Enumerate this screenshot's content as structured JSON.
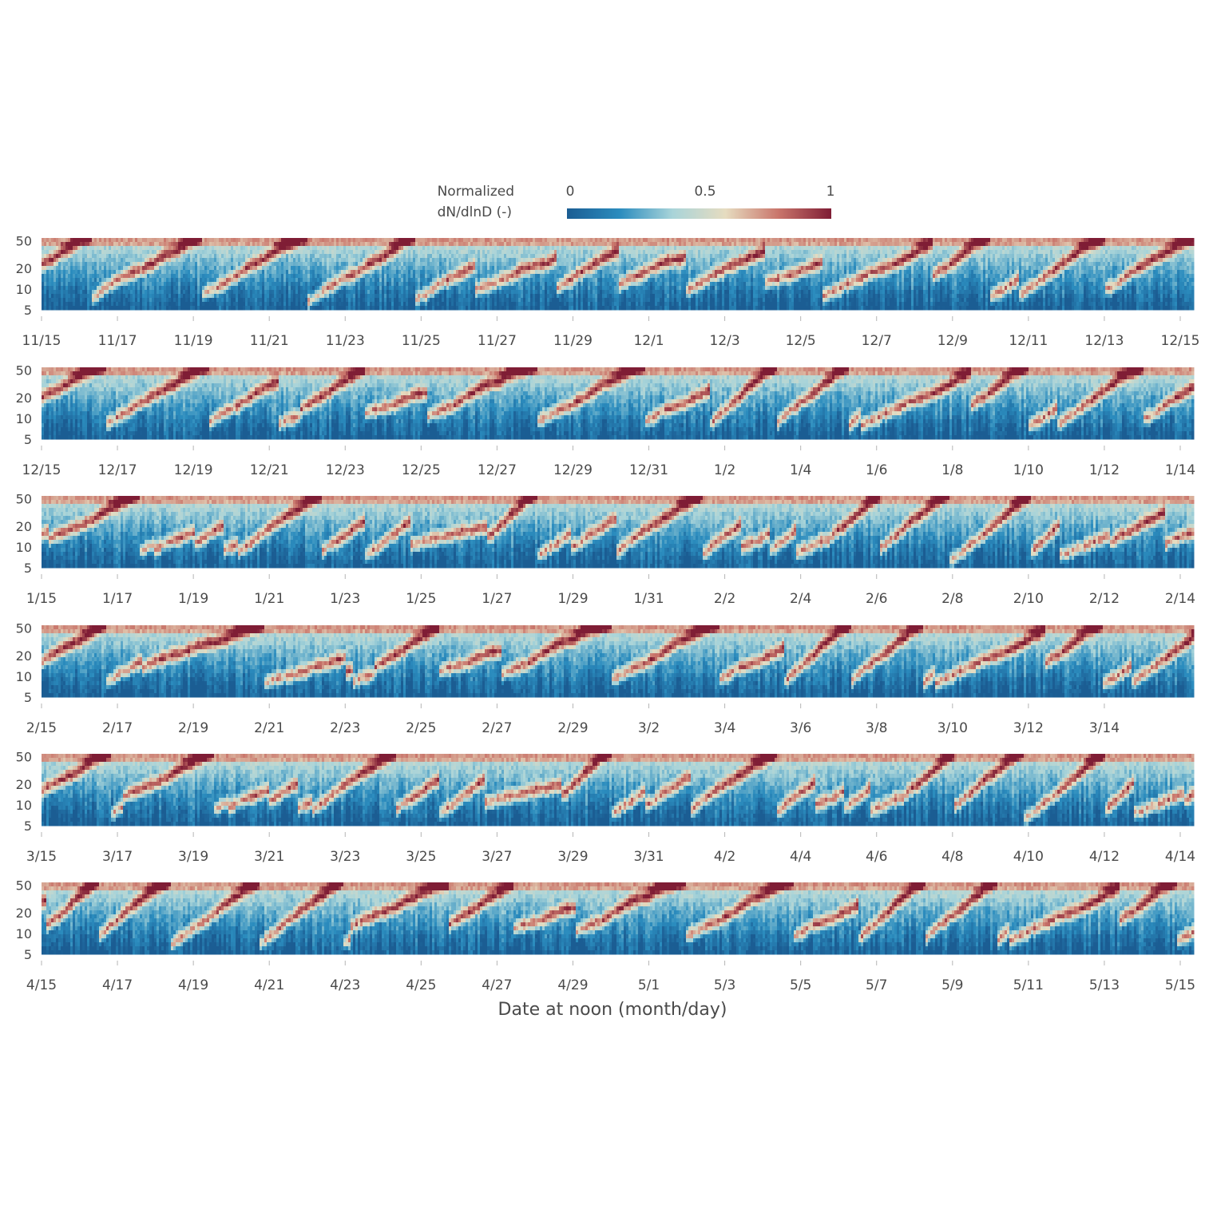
{
  "chart_data": {
    "type": "heatmap",
    "colorbar": {
      "label_line1": "Normalized",
      "label_line2": "dN/dlnD (-)",
      "ticks": [
        "0",
        "0.5",
        "1"
      ],
      "tick_values": [
        0,
        0.5,
        1
      ],
      "range": [
        0,
        1
      ],
      "colormap": [
        "#1b5d93",
        "#2b8cbe",
        "#a9d4d9",
        "#e6dcc0",
        "#c9756b",
        "#7f1d35"
      ]
    },
    "xlabel": "Date at noon (month/day)",
    "y_axis": {
      "scale": "log",
      "ticks": [
        5,
        10,
        20,
        50
      ],
      "tick_labels": [
        "5",
        "10",
        "20",
        "50"
      ],
      "range": [
        5,
        55
      ]
    },
    "panels": [
      {
        "ticks": [
          "11/15",
          "11/17",
          "11/19",
          "11/21",
          "11/23",
          "11/25",
          "11/27",
          "11/29",
          "12/1",
          "12/3",
          "12/5",
          "12/7",
          "12/9",
          "12/11",
          "12/13",
          "12/15"
        ]
      },
      {
        "ticks": [
          "12/15",
          "12/17",
          "12/19",
          "12/21",
          "12/23",
          "12/25",
          "12/27",
          "12/29",
          "12/31",
          "1/2",
          "1/4",
          "1/6",
          "1/8",
          "1/10",
          "1/12",
          "1/14"
        ]
      },
      {
        "ticks": [
          "1/15",
          "1/17",
          "1/19",
          "1/21",
          "1/23",
          "1/25",
          "1/27",
          "1/29",
          "1/31",
          "2/2",
          "2/4",
          "2/6",
          "2/8",
          "2/10",
          "2/12",
          "2/14"
        ]
      },
      {
        "ticks": [
          "2/15",
          "2/17",
          "2/19",
          "2/21",
          "2/23",
          "2/25",
          "2/27",
          "2/29",
          "3/2",
          "3/4",
          "3/6",
          "3/8",
          "3/10",
          "3/12",
          "3/14"
        ]
      },
      {
        "ticks": [
          "3/15",
          "3/17",
          "3/19",
          "3/21",
          "3/23",
          "3/25",
          "3/27",
          "3/29",
          "3/31",
          "4/2",
          "4/4",
          "4/6",
          "4/8",
          "4/10",
          "4/12",
          "4/14"
        ]
      },
      {
        "ticks": [
          "4/15",
          "4/17",
          "4/19",
          "4/21",
          "4/23",
          "4/25",
          "4/27",
          "4/29",
          "5/1",
          "5/3",
          "5/5",
          "5/7",
          "5/9",
          "5/11",
          "5/13",
          "5/15"
        ]
      }
    ]
  }
}
